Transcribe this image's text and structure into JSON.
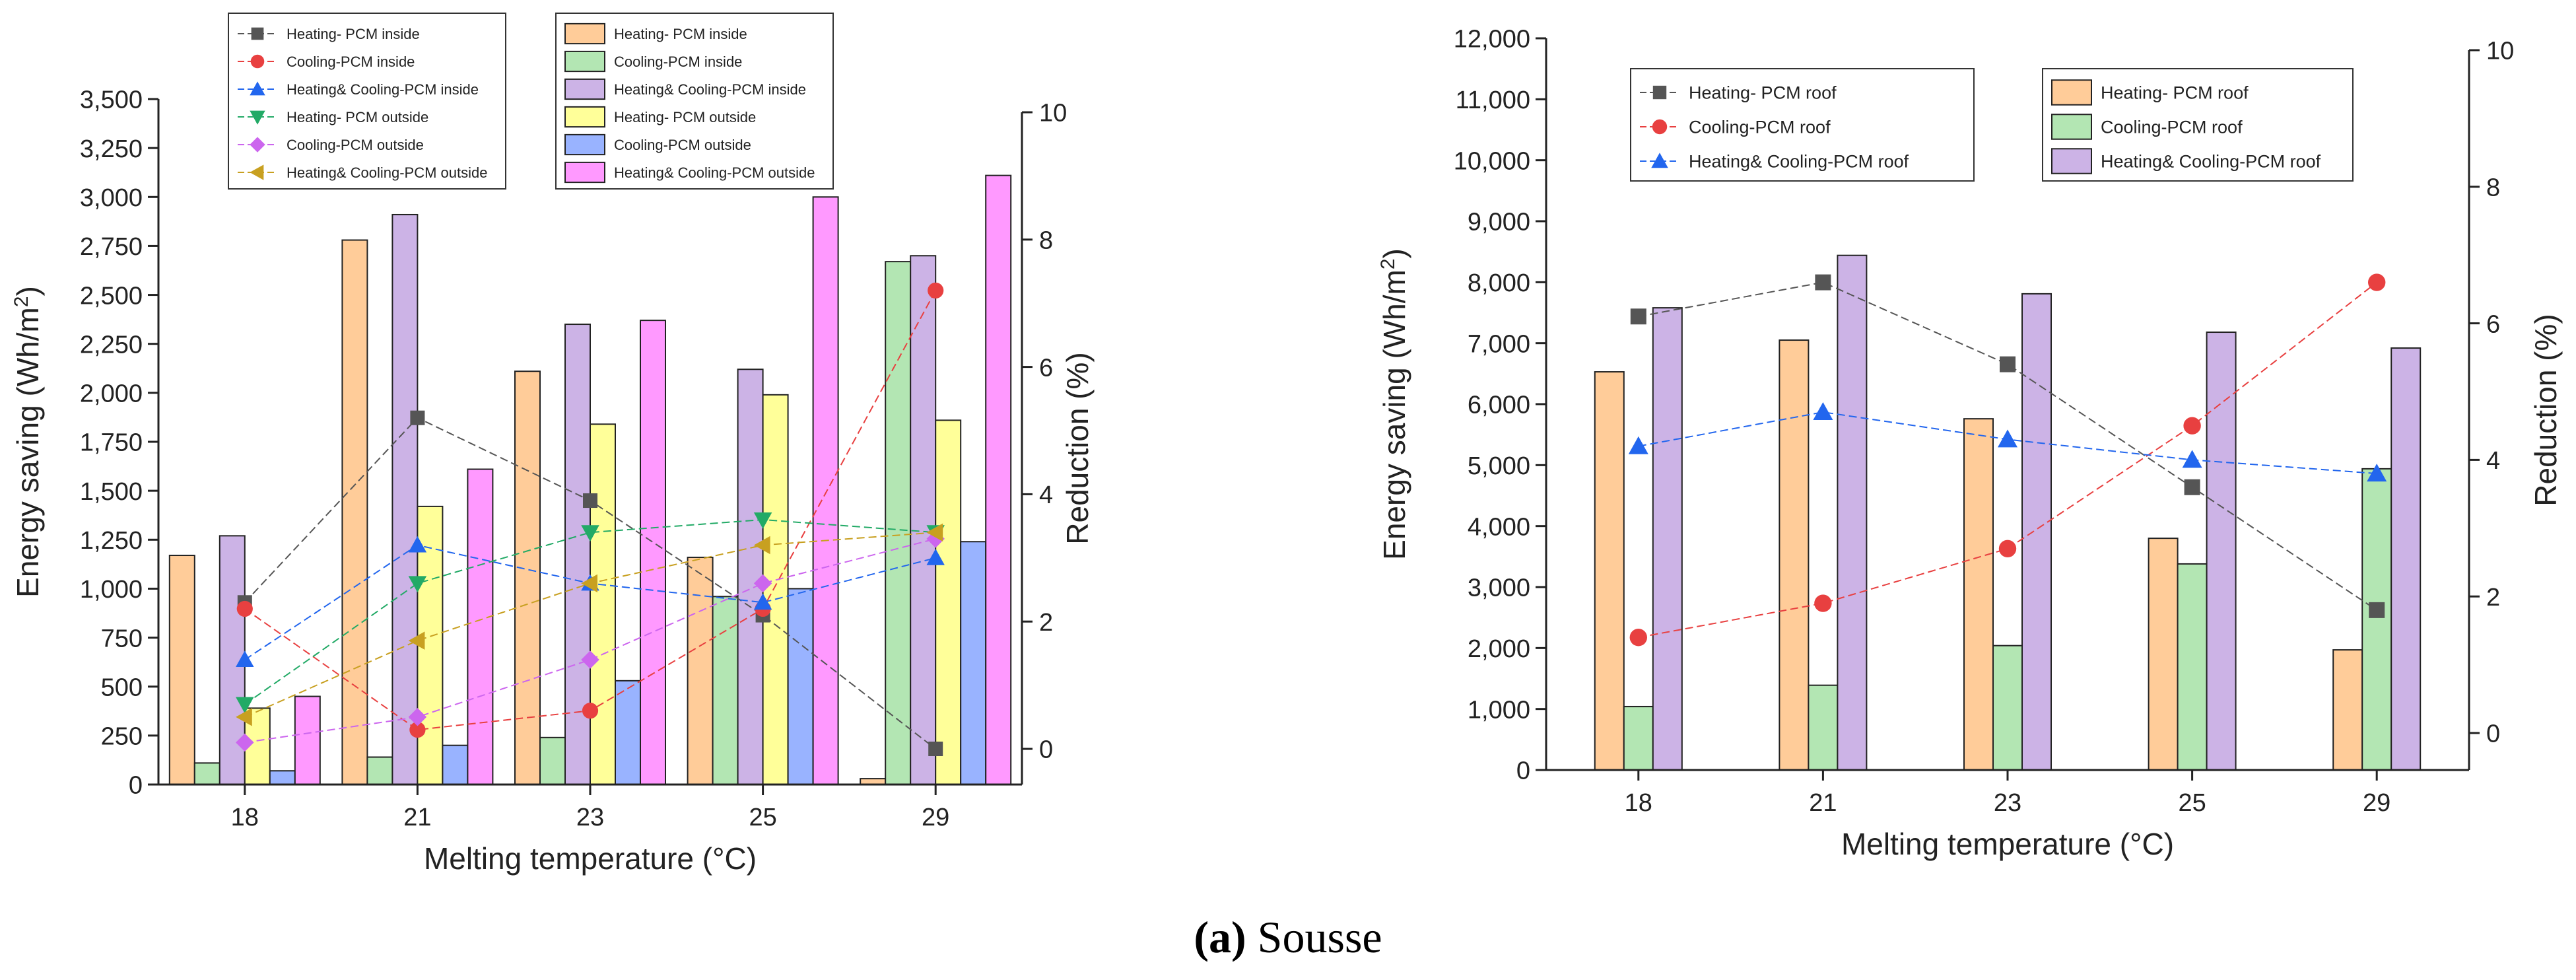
{
  "caption": {
    "label": "(a)",
    "text": " Sousse"
  },
  "chart_data": [
    {
      "type": "bar",
      "xlabel": "Melting temperature (°C)",
      "ylabel": "Energy saving (Wh/m²)",
      "y2label": "Reduction (%)",
      "categories": [
        "18",
        "21",
        "23",
        "25",
        "29"
      ],
      "ylim": [
        0,
        3500
      ],
      "yticks": [
        "0",
        "250",
        "500",
        "750",
        "1,000",
        "1,250",
        "1,500",
        "1,750",
        "2,000",
        "2,250",
        "2,500",
        "2,750",
        "3,000",
        "3,250",
        "3,500"
      ],
      "y2lim": [
        0,
        10
      ],
      "y2ticks": [
        "0",
        "2",
        "4",
        "6",
        "8",
        "10"
      ],
      "bar_series": [
        {
          "name": "Heating- PCM inside",
          "color": "#ffcc99",
          "values": [
            1170,
            2780,
            2110,
            1160,
            30
          ]
        },
        {
          "name": "Cooling-PCM inside",
          "color": "#b3e6b3",
          "values": [
            110,
            140,
            240,
            960,
            2670
          ]
        },
        {
          "name": "Heating& Cooling-PCM inside",
          "color": "#ccb3e6",
          "values": [
            1270,
            2910,
            2350,
            2120,
            2700
          ]
        },
        {
          "name": "Heating- PCM outside",
          "color": "#ffff99",
          "values": [
            390,
            1420,
            1840,
            1990,
            1860
          ]
        },
        {
          "name": "Cooling-PCM outside",
          "color": "#99b3ff",
          "values": [
            70,
            200,
            530,
            1000,
            1240
          ]
        },
        {
          "name": "Heating& Cooling-PCM outside",
          "color": "#ff99ff",
          "values": [
            450,
            1610,
            2370,
            3000,
            3110
          ]
        }
      ],
      "line_series": [
        {
          "name": "Heating- PCM inside",
          "color": "#555555",
          "marker": "square",
          "values": [
            2.3,
            5.2,
            3.9,
            2.1,
            0.0
          ]
        },
        {
          "name": "Cooling-PCM inside",
          "color": "#e84040",
          "marker": "circle",
          "values": [
            2.2,
            0.3,
            0.6,
            2.2,
            7.2
          ]
        },
        {
          "name": "Heating& Cooling-PCM inside",
          "color": "#2266ee",
          "marker": "triangle-up",
          "values": [
            1.4,
            3.2,
            2.6,
            2.3,
            3.0
          ]
        },
        {
          "name": "Heating- PCM outside",
          "color": "#22aa66",
          "marker": "triangle-down",
          "values": [
            0.7,
            2.6,
            3.4,
            3.6,
            3.4
          ]
        },
        {
          "name": "Cooling-PCM outside",
          "color": "#cc66ee",
          "marker": "diamond",
          "values": [
            0.1,
            0.5,
            1.4,
            2.6,
            3.3
          ]
        },
        {
          "name": "Heating& Cooling-PCM outside",
          "color": "#c8a020",
          "marker": "triangle-left",
          "values": [
            0.5,
            1.7,
            2.6,
            3.2,
            3.4
          ]
        }
      ]
    },
    {
      "type": "bar",
      "xlabel": "Melting temperature (°C)",
      "ylabel": "Energy saving (Wh/m²)",
      "y2label": "Reduction (%)",
      "categories": [
        "18",
        "21",
        "23",
        "25",
        "29"
      ],
      "ylim": [
        0,
        12000
      ],
      "yticks": [
        "0",
        "1,000",
        "2,000",
        "3,000",
        "4,000",
        "5,000",
        "6,000",
        "7,000",
        "8,000",
        "9,000",
        "10,000",
        "11,000",
        "12,000"
      ],
      "y2lim": [
        0,
        10
      ],
      "y2ticks": [
        "0",
        "2",
        "4",
        "6",
        "8",
        "10"
      ],
      "bar_series": [
        {
          "name": "Heating- PCM roof",
          "color": "#ffcc99",
          "values": [
            6530,
            7050,
            5760,
            3800,
            1970
          ]
        },
        {
          "name": "Cooling-PCM roof",
          "color": "#b3e6b3",
          "values": [
            1040,
            1390,
            2040,
            3380,
            4940
          ]
        },
        {
          "name": "Heating& Cooling-PCM roof",
          "color": "#ccb3e6",
          "values": [
            7580,
            8440,
            7810,
            7180,
            6920
          ]
        }
      ],
      "line_series": [
        {
          "name": "Heating- PCM roof",
          "color": "#555555",
          "marker": "square",
          "values": [
            6.1,
            6.6,
            5.4,
            3.6,
            1.8
          ]
        },
        {
          "name": "Cooling-PCM roof",
          "color": "#e84040",
          "marker": "circle",
          "values": [
            1.4,
            1.9,
            2.7,
            4.5,
            6.6
          ]
        },
        {
          "name": "Heating& Cooling-PCM roof",
          "color": "#2266ee",
          "marker": "triangle-up",
          "values": [
            4.2,
            4.7,
            4.3,
            4.0,
            3.8
          ]
        }
      ]
    }
  ]
}
